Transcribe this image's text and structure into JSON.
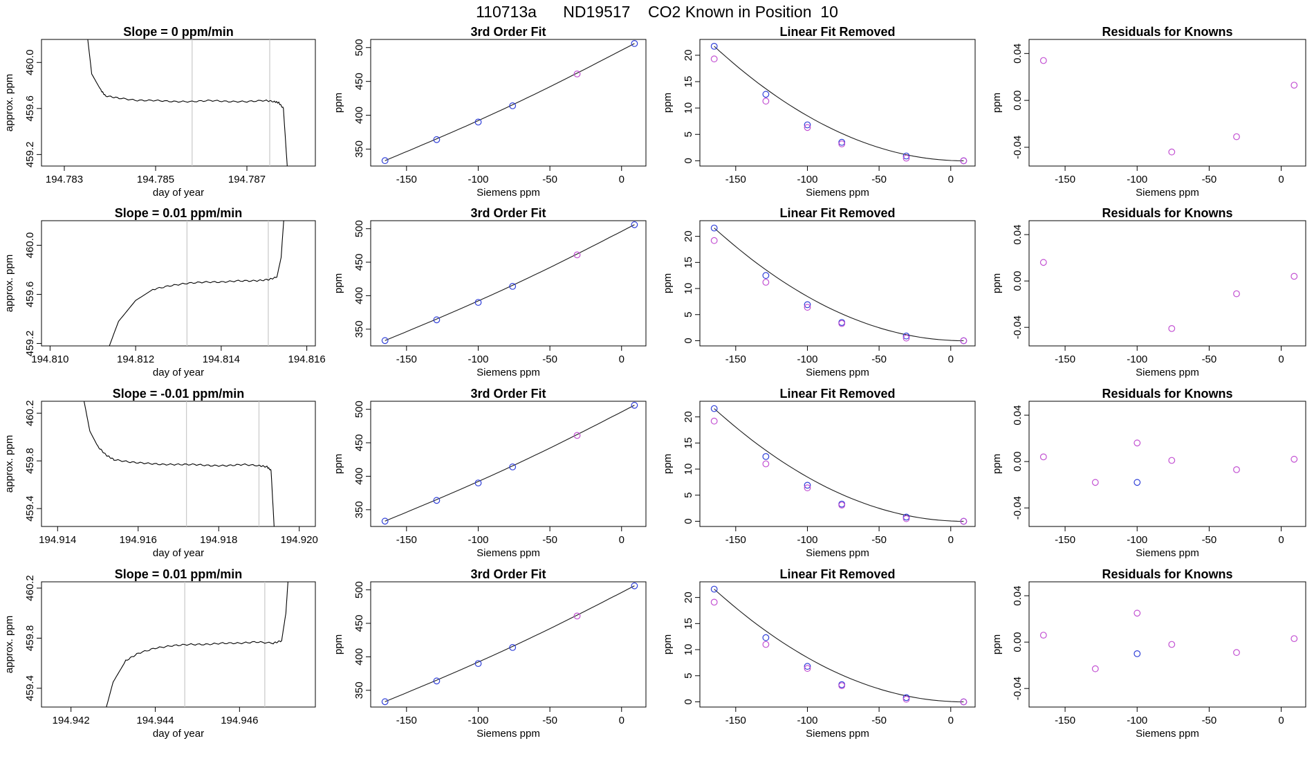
{
  "figure": {
    "title": "110713a      ND19517    CO2 Known in Position  10"
  },
  "colors": {
    "trace": "#000000",
    "vline": "#c8c8c8",
    "blue": "#2f3fd8",
    "magenta": "#c24fd2",
    "fitline": "#1a1a1a"
  },
  "chart_data": [
    {
      "type": "line",
      "row": 0,
      "title": "Slope =  0  ppm/min",
      "xlabel": "day of year",
      "ylabel": "approx. ppm",
      "xlim": [
        194.7825,
        194.7885
      ],
      "ylim": [
        459.1,
        460.2
      ],
      "xticks": [
        194.783,
        194.785,
        194.787
      ],
      "yticks": [
        459.2,
        459.6,
        460.0
      ],
      "vlines": [
        194.7858,
        194.7875
      ],
      "x": [
        194.7834,
        194.7836,
        194.7838,
        194.7839,
        194.7842,
        194.7846,
        194.785,
        194.7854,
        194.7858,
        194.7862,
        194.7866,
        194.787,
        194.7874,
        194.7876,
        194.7877,
        194.7878,
        194.7879
      ],
      "y": [
        460.6,
        459.9,
        459.76,
        459.71,
        459.69,
        459.67,
        459.67,
        459.66,
        459.66,
        459.67,
        459.66,
        459.66,
        459.67,
        459.66,
        459.65,
        459.6,
        459.0
      ]
    },
    {
      "type": "scatter",
      "row": 0,
      "title": "3rd Order Fit",
      "xlabel": "Siemens ppm",
      "ylabel": "ppm",
      "xlim": [
        -175,
        17
      ],
      "ylim": [
        325,
        512
      ],
      "xticks": [
        -150,
        -100,
        -50,
        0
      ],
      "yticks": [
        350,
        400,
        450,
        500
      ],
      "curve": {
        "x": [
          -165,
          9
        ],
        "y": [
          333,
          506
        ]
      },
      "series": [
        {
          "color": "blue",
          "x": [
            -165,
            -129,
            -100,
            -76,
            9
          ],
          "y": [
            333,
            364,
            390,
            414,
            506
          ]
        },
        {
          "color": "magenta",
          "x": [
            -31
          ],
          "y": [
            461
          ]
        }
      ]
    },
    {
      "type": "scatter",
      "row": 0,
      "title": "Linear Fit Removed",
      "xlabel": "Siemens ppm",
      "ylabel": "ppm",
      "xlim": [
        -175,
        17
      ],
      "ylim": [
        -1,
        23
      ],
      "xticks": [
        -150,
        -100,
        -50,
        0
      ],
      "yticks": [
        0,
        5,
        10,
        15,
        20
      ],
      "curve": {
        "x": [
          -165,
          9
        ],
        "y": [
          21.7,
          0
        ]
      },
      "series": [
        {
          "color": "blue",
          "x": [
            -165,
            -129,
            -100,
            -76,
            -31,
            9
          ],
          "y": [
            21.7,
            12.6,
            6.8,
            3.5,
            0.9,
            0
          ]
        },
        {
          "color": "magenta",
          "x": [
            -165,
            -129,
            -100,
            -76,
            -31,
            9
          ],
          "y": [
            19.3,
            11.3,
            6.3,
            3.2,
            0.5,
            0
          ]
        }
      ]
    },
    {
      "type": "scatter",
      "row": 0,
      "title": "Residuals for Knowns",
      "xlabel": "Siemens ppm",
      "ylabel": "ppm",
      "xlim": [
        -175,
        17
      ],
      "ylim": [
        -0.056,
        0.052
      ],
      "xticks": [
        -150,
        -100,
        -50,
        0
      ],
      "yticks": [
        -0.04,
        0.0,
        0.04
      ],
      "series": [
        {
          "color": "magenta",
          "x": [
            -165,
            -76,
            -31,
            9
          ],
          "y": [
            0.034,
            -0.044,
            -0.031,
            0.013
          ]
        }
      ]
    },
    {
      "type": "line",
      "row": 1,
      "title": "Slope =  0.01  ppm/min",
      "xlabel": "day of year",
      "ylabel": "approx. ppm",
      "xlim": [
        194.8098,
        194.8162
      ],
      "ylim": [
        459.18,
        460.2
      ],
      "xticks": [
        194.81,
        194.812,
        194.814,
        194.816
      ],
      "yticks": [
        459.2,
        459.6,
        460.0
      ],
      "vlines": [
        194.8132,
        194.8151
      ],
      "x": [
        194.8113,
        194.8116,
        194.812,
        194.8124,
        194.8128,
        194.8132,
        194.8136,
        194.814,
        194.8144,
        194.8148,
        194.8151,
        194.8153,
        194.8154,
        194.8155
      ],
      "y": [
        459.1,
        459.38,
        459.55,
        459.64,
        459.67,
        459.69,
        459.7,
        459.7,
        459.71,
        459.71,
        459.72,
        459.74,
        459.9,
        460.4
      ]
    },
    {
      "type": "scatter",
      "row": 1,
      "title": "3rd Order Fit",
      "xlabel": "Siemens ppm",
      "ylabel": "ppm",
      "xlim": [
        -175,
        17
      ],
      "ylim": [
        325,
        512
      ],
      "xticks": [
        -150,
        -100,
        -50,
        0
      ],
      "yticks": [
        350,
        400,
        450,
        500
      ],
      "curve": {
        "x": [
          -165,
          9
        ],
        "y": [
          333,
          506
        ]
      },
      "series": [
        {
          "color": "blue",
          "x": [
            -165,
            -129,
            -100,
            -76,
            9
          ],
          "y": [
            333,
            364,
            390,
            414,
            506
          ]
        },
        {
          "color": "magenta",
          "x": [
            -31
          ],
          "y": [
            461
          ]
        }
      ]
    },
    {
      "type": "scatter",
      "row": 1,
      "title": "Linear Fit Removed",
      "xlabel": "Siemens ppm",
      "ylabel": "ppm",
      "xlim": [
        -175,
        17
      ],
      "ylim": [
        -1,
        23
      ],
      "xticks": [
        -150,
        -100,
        -50,
        0
      ],
      "yticks": [
        0,
        5,
        10,
        15,
        20
      ],
      "curve": {
        "x": [
          -165,
          9
        ],
        "y": [
          21.6,
          0
        ]
      },
      "series": [
        {
          "color": "blue",
          "x": [
            -165,
            -129,
            -100,
            -76,
            -31,
            9
          ],
          "y": [
            21.6,
            12.5,
            6.9,
            3.5,
            0.9,
            0
          ]
        },
        {
          "color": "magenta",
          "x": [
            -165,
            -129,
            -100,
            -76,
            -31,
            9
          ],
          "y": [
            19.2,
            11.2,
            6.4,
            3.3,
            0.5,
            0
          ]
        }
      ]
    },
    {
      "type": "scatter",
      "row": 1,
      "title": "Residuals for Knowns",
      "xlabel": "Siemens ppm",
      "ylabel": "ppm",
      "xlim": [
        -175,
        17
      ],
      "ylim": [
        -0.056,
        0.052
      ],
      "xticks": [
        -150,
        -100,
        -50,
        0
      ],
      "yticks": [
        -0.04,
        0.0,
        0.04
      ],
      "series": [
        {
          "color": "magenta",
          "x": [
            -165,
            -76,
            -31,
            9
          ],
          "y": [
            0.016,
            -0.041,
            -0.011,
            0.004
          ]
        }
      ]
    },
    {
      "type": "line",
      "row": 2,
      "title": "Slope =  -0.01  ppm/min",
      "xlabel": "day of year",
      "ylabel": "approx. ppm",
      "xlim": [
        194.9136,
        194.9204
      ],
      "ylim": [
        459.25,
        460.3
      ],
      "xticks": [
        194.914,
        194.916,
        194.918,
        194.92
      ],
      "yticks": [
        459.4,
        459.8,
        460.2
      ],
      "vlines": [
        194.9172,
        194.919
      ],
      "x": [
        194.9146,
        194.9148,
        194.915,
        194.9152,
        194.9154,
        194.9158,
        194.9162,
        194.9166,
        194.917,
        194.9174,
        194.9178,
        194.9182,
        194.9186,
        194.919,
        194.9192,
        194.9193,
        194.9194
      ],
      "y": [
        460.4,
        460.05,
        459.92,
        459.85,
        459.81,
        459.79,
        459.78,
        459.77,
        459.77,
        459.77,
        459.76,
        459.76,
        459.77,
        459.76,
        459.75,
        459.72,
        459.1
      ]
    },
    {
      "type": "scatter",
      "row": 2,
      "title": "3rd Order Fit",
      "xlabel": "Siemens ppm",
      "ylabel": "ppm",
      "xlim": [
        -175,
        17
      ],
      "ylim": [
        325,
        512
      ],
      "xticks": [
        -150,
        -100,
        -50,
        0
      ],
      "yticks": [
        350,
        400,
        450,
        500
      ],
      "curve": {
        "x": [
          -165,
          9
        ],
        "y": [
          333,
          506
        ]
      },
      "series": [
        {
          "color": "blue",
          "x": [
            -165,
            -129,
            -100,
            -76,
            9
          ],
          "y": [
            333,
            364,
            390,
            414,
            506
          ]
        },
        {
          "color": "magenta",
          "x": [
            -31
          ],
          "y": [
            461
          ]
        }
      ]
    },
    {
      "type": "scatter",
      "row": 2,
      "title": "Linear Fit Removed",
      "xlabel": "Siemens ppm",
      "ylabel": "ppm",
      "xlim": [
        -175,
        17
      ],
      "ylim": [
        -1,
        23
      ],
      "xticks": [
        -150,
        -100,
        -50,
        0
      ],
      "yticks": [
        0,
        5,
        10,
        15,
        20
      ],
      "curve": {
        "x": [
          -165,
          9
        ],
        "y": [
          21.6,
          0
        ]
      },
      "series": [
        {
          "color": "blue",
          "x": [
            -165,
            -129,
            -100,
            -76,
            -31,
            9
          ],
          "y": [
            21.6,
            12.4,
            6.9,
            3.3,
            0.8,
            0
          ]
        },
        {
          "color": "magenta",
          "x": [
            -165,
            -129,
            -100,
            -76,
            -31,
            9
          ],
          "y": [
            19.2,
            11.0,
            6.4,
            3.1,
            0.5,
            0
          ]
        }
      ]
    },
    {
      "type": "scatter",
      "row": 2,
      "title": "Residuals for Knowns",
      "xlabel": "Siemens ppm",
      "ylabel": "ppm",
      "xlim": [
        -175,
        17
      ],
      "ylim": [
        -0.056,
        0.052
      ],
      "xticks": [
        -150,
        -100,
        -50,
        0
      ],
      "yticks": [
        -0.04,
        0.0,
        0.04
      ],
      "series": [
        {
          "color": "blue",
          "x": [
            -100
          ],
          "y": [
            -0.018
          ]
        },
        {
          "color": "magenta",
          "x": [
            -165,
            -129,
            -100,
            -76,
            -31,
            9
          ],
          "y": [
            0.004,
            -0.018,
            0.016,
            0.001,
            -0.007,
            0.002
          ]
        }
      ]
    },
    {
      "type": "line",
      "row": 3,
      "title": "Slope =  0.01  ppm/min",
      "xlabel": "day of year",
      "ylabel": "approx. ppm",
      "xlim": [
        194.9413,
        194.9478
      ],
      "ylim": [
        459.25,
        460.25
      ],
      "xticks": [
        194.942,
        194.944,
        194.946
      ],
      "yticks": [
        459.4,
        459.8,
        460.2
      ],
      "vlines": [
        194.9447,
        194.9466
      ],
      "x": [
        194.9428,
        194.943,
        194.9433,
        194.9436,
        194.944,
        194.9444,
        194.9448,
        194.9452,
        194.9456,
        194.946,
        194.9464,
        194.9468,
        194.947,
        194.9471,
        194.9472
      ],
      "y": [
        459.2,
        459.45,
        459.62,
        459.68,
        459.72,
        459.74,
        459.75,
        459.75,
        459.76,
        459.76,
        459.77,
        459.76,
        459.78,
        460.0,
        460.5
      ]
    },
    {
      "type": "scatter",
      "row": 3,
      "title": "3rd Order Fit",
      "xlabel": "Siemens ppm",
      "ylabel": "ppm",
      "xlim": [
        -175,
        17
      ],
      "ylim": [
        325,
        512
      ],
      "xticks": [
        -150,
        -100,
        -50,
        0
      ],
      "yticks": [
        350,
        400,
        450,
        500
      ],
      "curve": {
        "x": [
          -165,
          9
        ],
        "y": [
          333,
          506
        ]
      },
      "series": [
        {
          "color": "blue",
          "x": [
            -165,
            -129,
            -100,
            -76,
            9
          ],
          "y": [
            333,
            364,
            390,
            414,
            506
          ]
        },
        {
          "color": "magenta",
          "x": [
            -31
          ],
          "y": [
            461
          ]
        }
      ]
    },
    {
      "type": "scatter",
      "row": 3,
      "title": "Linear Fit Removed",
      "xlabel": "Siemens ppm",
      "ylabel": "ppm",
      "xlim": [
        -175,
        17
      ],
      "ylim": [
        -1,
        23
      ],
      "xticks": [
        -150,
        -100,
        -50,
        0
      ],
      "yticks": [
        0,
        5,
        10,
        15,
        20
      ],
      "curve": {
        "x": [
          -165,
          9
        ],
        "y": [
          21.6,
          0
        ]
      },
      "series": [
        {
          "color": "blue",
          "x": [
            -165,
            -129,
            -100,
            -76,
            -31,
            9
          ],
          "y": [
            21.6,
            12.3,
            6.8,
            3.3,
            0.8,
            0
          ]
        },
        {
          "color": "magenta",
          "x": [
            -165,
            -129,
            -100,
            -76,
            -31,
            9
          ],
          "y": [
            19.1,
            11.0,
            6.4,
            3.1,
            0.5,
            0
          ]
        }
      ]
    },
    {
      "type": "scatter",
      "row": 3,
      "title": "Residuals for Knowns",
      "xlabel": "Siemens ppm",
      "ylabel": "ppm",
      "xlim": [
        -175,
        17
      ],
      "ylim": [
        -0.056,
        0.052
      ],
      "xticks": [
        -150,
        -100,
        -50,
        0
      ],
      "yticks": [
        -0.04,
        0.0,
        0.04
      ],
      "series": [
        {
          "color": "blue",
          "x": [
            -100
          ],
          "y": [
            -0.01
          ]
        },
        {
          "color": "magenta",
          "x": [
            -165,
            -129,
            -100,
            -76,
            -31,
            9
          ],
          "y": [
            0.006,
            -0.023,
            0.025,
            -0.002,
            -0.009,
            0.003
          ]
        }
      ]
    }
  ]
}
